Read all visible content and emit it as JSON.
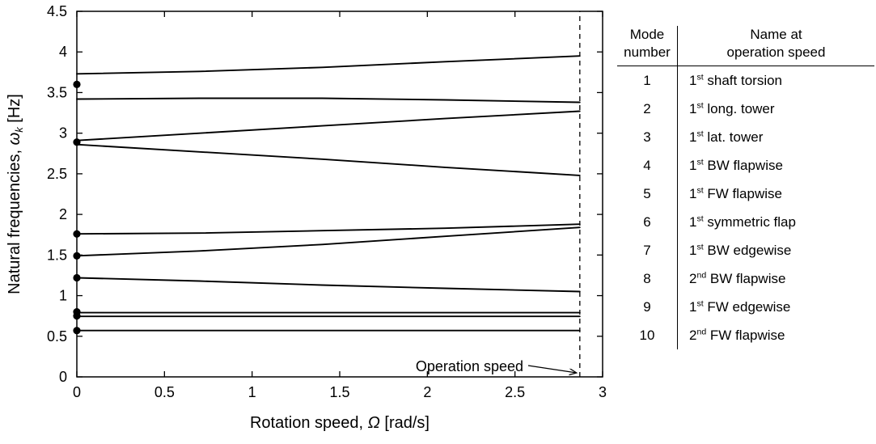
{
  "chart_data": {
    "type": "line",
    "title": "",
    "xlabel_parts": {
      "pre": "Rotation speed, ",
      "symbol": "Ω",
      "post": " [rad/s]"
    },
    "ylabel_parts": {
      "pre": "Natural frequencies, ",
      "symbol": "ω",
      "sub": "k",
      "post": " [Hz]"
    },
    "xlim": [
      0,
      3
    ],
    "ylim": [
      0,
      4.5
    ],
    "x_ticks": [
      0,
      0.5,
      1,
      1.5,
      2,
      2.5,
      3
    ],
    "x_tick_labels": [
      "0",
      "0.5",
      "1",
      "1.5",
      "2",
      "2.5",
      "3"
    ],
    "y_ticks": [
      0,
      0.5,
      1,
      1.5,
      2,
      2.5,
      3,
      3.5,
      4,
      4.5
    ],
    "y_tick_labels": [
      "0",
      "0.5",
      "1",
      "1.5",
      "2",
      "2.5",
      "3",
      "3.5",
      "4",
      "4.5"
    ],
    "grid": false,
    "line_color": "#000000",
    "operation_speed": {
      "x": 2.87,
      "label": "Operation speed"
    },
    "standstill_dots_x": 0,
    "standstill_dots_y": [
      3.6,
      2.89,
      1.76,
      1.49,
      1.22,
      0.8,
      0.75,
      0.57
    ],
    "series": [
      {
        "name": "2nd FW flapwise",
        "points": [
          [
            0,
            3.73
          ],
          [
            0.7,
            3.76
          ],
          [
            1.4,
            3.81
          ],
          [
            2.1,
            3.88
          ],
          [
            2.87,
            3.95
          ]
        ]
      },
      {
        "name": "2nd BW flapwise",
        "points": [
          [
            0,
            3.42
          ],
          [
            0.7,
            3.43
          ],
          [
            1.4,
            3.43
          ],
          [
            2.1,
            3.41
          ],
          [
            2.87,
            3.38
          ]
        ]
      },
      {
        "name": "1st FW edgewise",
        "points": [
          [
            0,
            2.91
          ],
          [
            0.7,
            3.0
          ],
          [
            1.4,
            3.09
          ],
          [
            2.1,
            3.18
          ],
          [
            2.87,
            3.27
          ]
        ]
      },
      {
        "name": "1st BW edgewise",
        "points": [
          [
            0,
            2.86
          ],
          [
            0.7,
            2.77
          ],
          [
            1.4,
            2.68
          ],
          [
            2.1,
            2.58
          ],
          [
            2.87,
            2.48
          ]
        ]
      },
      {
        "name": "1st symmetric flap",
        "points": [
          [
            0,
            1.76
          ],
          [
            0.7,
            1.77
          ],
          [
            1.4,
            1.8
          ],
          [
            2.1,
            1.83
          ],
          [
            2.87,
            1.88
          ]
        ]
      },
      {
        "name": "1st FW flapwise",
        "points": [
          [
            0,
            1.49
          ],
          [
            0.7,
            1.55
          ],
          [
            1.4,
            1.63
          ],
          [
            2.1,
            1.73
          ],
          [
            2.87,
            1.84
          ]
        ]
      },
      {
        "name": "1st BW flapwise",
        "points": [
          [
            0,
            1.22
          ],
          [
            0.7,
            1.18
          ],
          [
            1.4,
            1.13
          ],
          [
            2.1,
            1.09
          ],
          [
            2.87,
            1.05
          ]
        ]
      },
      {
        "name": "1st lat. tower",
        "points": [
          [
            0,
            0.79
          ],
          [
            2.87,
            0.79
          ]
        ]
      },
      {
        "name": "1st long. tower",
        "points": [
          [
            0,
            0.745
          ],
          [
            2.87,
            0.745
          ]
        ]
      },
      {
        "name": "1st shaft torsion",
        "points": [
          [
            0,
            0.57
          ],
          [
            2.87,
            0.57
          ]
        ]
      }
    ]
  },
  "table": {
    "headers": {
      "mode_lines": [
        "Mode",
        "number"
      ],
      "name_lines": [
        "Name at",
        "operation speed"
      ]
    },
    "rows": [
      {
        "mode": "1",
        "ord": "1",
        "sup": "st",
        "rest": " shaft torsion"
      },
      {
        "mode": "2",
        "ord": "1",
        "sup": "st",
        "rest": " long. tower"
      },
      {
        "mode": "3",
        "ord": "1",
        "sup": "st",
        "rest": " lat. tower"
      },
      {
        "mode": "4",
        "ord": "1",
        "sup": "st",
        "rest": " BW flapwise"
      },
      {
        "mode": "5",
        "ord": "1",
        "sup": "st",
        "rest": " FW flapwise"
      },
      {
        "mode": "6",
        "ord": "1",
        "sup": "st",
        "rest": " symmetric flap"
      },
      {
        "mode": "7",
        "ord": "1",
        "sup": "st",
        "rest": " BW edgewise"
      },
      {
        "mode": "8",
        "ord": "2",
        "sup": "nd",
        "rest": " BW flapwise"
      },
      {
        "mode": "9",
        "ord": "1",
        "sup": "st",
        "rest": " FW edgewise"
      },
      {
        "mode": "10",
        "ord": "2",
        "sup": "nd",
        "rest": " FW flapwise"
      }
    ]
  }
}
